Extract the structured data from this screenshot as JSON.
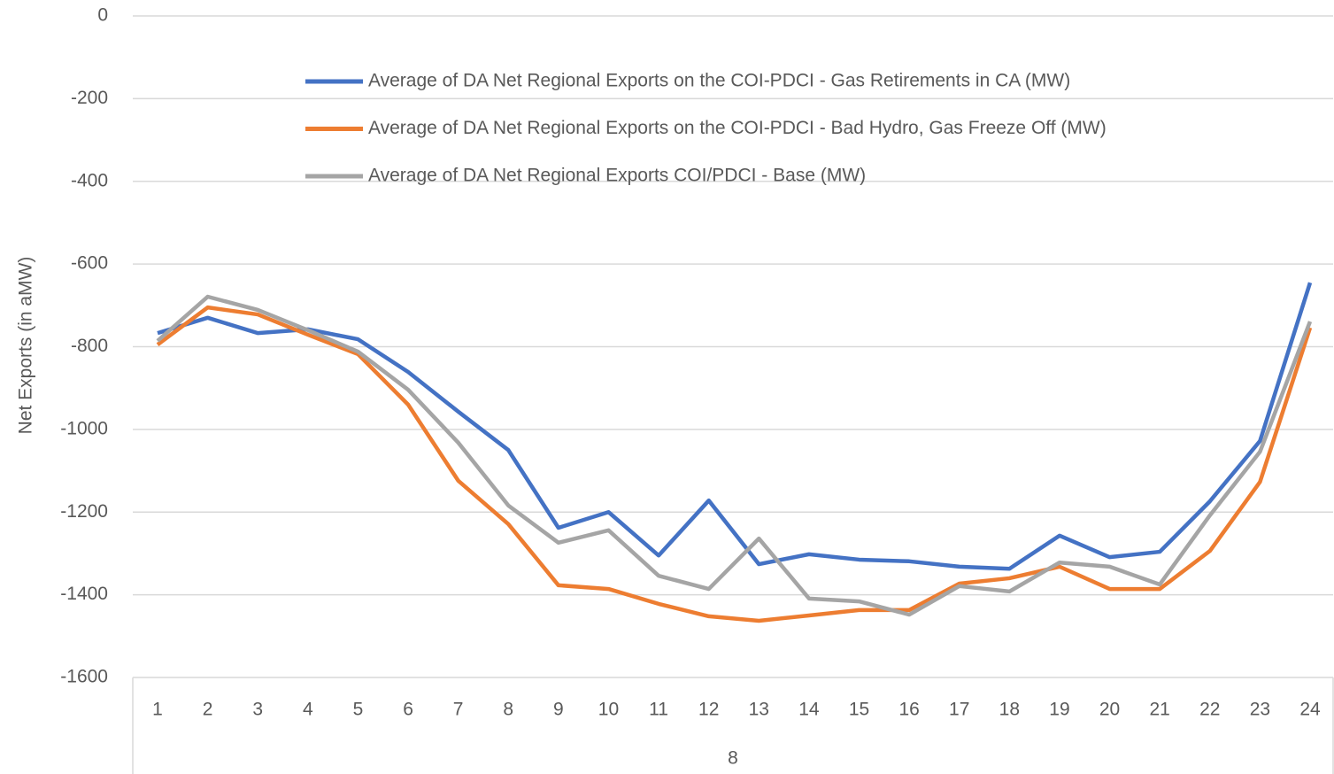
{
  "chart_data": {
    "type": "line",
    "y_label": "Net Exports (in aMW)",
    "x_group_label": "8",
    "categories": [
      "1",
      "2",
      "3",
      "4",
      "5",
      "6",
      "7",
      "8",
      "9",
      "10",
      "11",
      "12",
      "13",
      "14",
      "15",
      "16",
      "17",
      "18",
      "19",
      "20",
      "21",
      "22",
      "23",
      "24"
    ],
    "ylim": [
      -1600,
      0
    ],
    "yticks": [
      0,
      -200,
      -400,
      -600,
      -800,
      -1000,
      -1200,
      -1400,
      -1600
    ],
    "grid": true,
    "legend": "top",
    "series": [
      {
        "name": "Average of DA Net Regional Exports on the COI-PDCI - Gas Retirements in CA (MW)",
        "color": "#4472c4",
        "values": [
          -767,
          -730,
          -767,
          -758,
          -782,
          -861,
          -957,
          -1050,
          -1238,
          -1200,
          -1305,
          -1172,
          -1326,
          -1302,
          -1315,
          -1319,
          -1332,
          -1337,
          -1257,
          -1309,
          -1296,
          -1174,
          -1028,
          -645
        ]
      },
      {
        "name": "Average of DA Net Regional Exports on the COI-PDCI - Bad Hydro, Gas Freeze Off (MW)",
        "color": "#ed7d31",
        "values": [
          -795,
          -705,
          -722,
          -771,
          -818,
          -940,
          -1124,
          -1229,
          -1377,
          -1386,
          -1422,
          -1452,
          -1463,
          -1450,
          -1437,
          -1437,
          -1373,
          -1360,
          -1332,
          -1386,
          -1386,
          -1294,
          -1127,
          -754
        ]
      },
      {
        "name": "Average of DA Net Regional Exports COI/PDCI - Base (MW)",
        "color": "#a5a5a5",
        "values": [
          -786,
          -679,
          -711,
          -760,
          -812,
          -904,
          -1032,
          -1184,
          -1274,
          -1244,
          -1354,
          -1386,
          -1264,
          -1409,
          -1416,
          -1448,
          -1379,
          -1392,
          -1322,
          -1332,
          -1375,
          -1208,
          -1054,
          -739
        ]
      }
    ]
  }
}
